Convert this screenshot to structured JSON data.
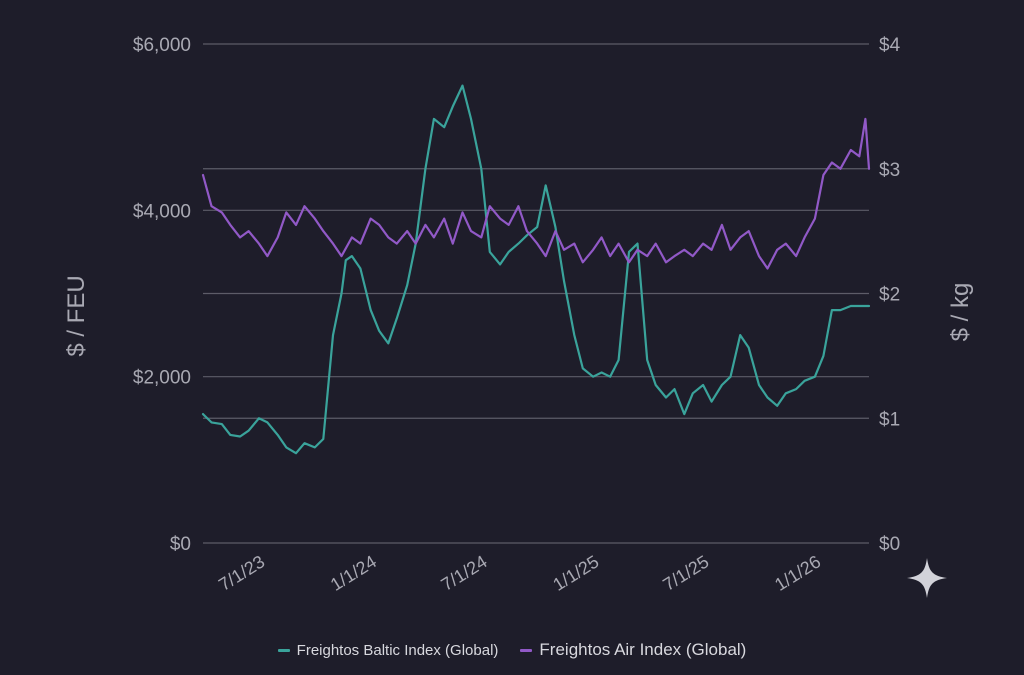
{
  "chart_data": {
    "type": "line",
    "left_axis_label": "$ / FEU",
    "right_axis_label": "$ / kg",
    "left_ticks": [
      "$0",
      "$2,000",
      "$4,000",
      "$6,000"
    ],
    "right_ticks": [
      "$0",
      "$1",
      "$2",
      "$3",
      "$4"
    ],
    "left_ylim": [
      0,
      6000
    ],
    "right_ylim": [
      0,
      4
    ],
    "x_tick_labels": [
      "7/1/23",
      "1/1/24",
      "7/1/24",
      "1/1/25",
      "7/1/25",
      "1/1/26"
    ],
    "grid": true,
    "legend_position": "bottom",
    "series": [
      {
        "name": "Freightos Baltic Index (Global)",
        "axis": "left",
        "color": "#3aa39b",
        "x": [
          "2023-05-01",
          "2023-05-15",
          "2023-06-01",
          "2023-06-15",
          "2023-07-01",
          "2023-07-15",
          "2023-08-01",
          "2023-08-15",
          "2023-09-01",
          "2023-09-15",
          "2023-10-01",
          "2023-10-15",
          "2023-11-01",
          "2023-11-15",
          "2023-12-01",
          "2023-12-15",
          "2023-12-22",
          "2024-01-01",
          "2024-01-15",
          "2024-02-01",
          "2024-02-15",
          "2024-03-01",
          "2024-03-15",
          "2024-04-01",
          "2024-04-15",
          "2024-05-01",
          "2024-05-15",
          "2024-06-01",
          "2024-06-15",
          "2024-07-01",
          "2024-07-15",
          "2024-08-01",
          "2024-08-15",
          "2024-09-01",
          "2024-09-15",
          "2024-10-01",
          "2024-10-15",
          "2024-11-01",
          "2024-11-15",
          "2024-12-01",
          "2024-12-15",
          "2025-01-01",
          "2025-01-15",
          "2025-02-01",
          "2025-02-15",
          "2025-03-01",
          "2025-03-15",
          "2025-04-01",
          "2025-04-15",
          "2025-05-01",
          "2025-05-15",
          "2025-06-01",
          "2025-06-15",
          "2025-07-01",
          "2025-07-15",
          "2025-08-01",
          "2025-08-15",
          "2025-09-01",
          "2025-09-15",
          "2025-10-01",
          "2025-10-15",
          "2025-11-01",
          "2025-11-15",
          "2025-12-01",
          "2025-12-15",
          "2026-01-01",
          "2026-01-15",
          "2026-02-01",
          "2026-02-15",
          "2026-03-01",
          "2026-03-15",
          "2026-04-01",
          "2026-04-15",
          "2026-05-01"
        ],
        "values": [
          1550,
          1450,
          1430,
          1300,
          1280,
          1350,
          1500,
          1450,
          1300,
          1150,
          1080,
          1200,
          1150,
          1250,
          2500,
          3000,
          3400,
          3450,
          3300,
          2800,
          2550,
          2400,
          2700,
          3100,
          3600,
          4500,
          5100,
          5000,
          5250,
          5500,
          5100,
          4500,
          3500,
          3350,
          3500,
          3600,
          3700,
          3800,
          4300,
          3800,
          3150,
          2500,
          2100,
          2000,
          2050,
          2000,
          2200,
          3500,
          3600,
          2200,
          1900,
          1750,
          1850,
          1550,
          1800,
          1900,
          1700,
          1900,
          2000,
          2500,
          2350,
          1900,
          1750,
          1650,
          1800,
          1850,
          1950,
          2000,
          2250,
          2800,
          2800,
          2850,
          2850,
          2850
        ]
      },
      {
        "name": "Freightos Air Index (Global)",
        "axis": "right",
        "color": "#9159c7",
        "x": [
          "2023-05-01",
          "2023-05-15",
          "2023-06-01",
          "2023-06-15",
          "2023-07-01",
          "2023-07-15",
          "2023-08-01",
          "2023-08-15",
          "2023-09-01",
          "2023-09-15",
          "2023-10-01",
          "2023-10-15",
          "2023-11-01",
          "2023-11-15",
          "2023-12-01",
          "2023-12-15",
          "2024-01-01",
          "2024-01-15",
          "2024-02-01",
          "2024-02-15",
          "2024-03-01",
          "2024-03-15",
          "2024-04-01",
          "2024-04-15",
          "2024-05-01",
          "2024-05-15",
          "2024-06-01",
          "2024-06-15",
          "2024-07-01",
          "2024-07-15",
          "2024-08-01",
          "2024-08-15",
          "2024-09-01",
          "2024-09-15",
          "2024-10-01",
          "2024-10-15",
          "2024-11-01",
          "2024-11-15",
          "2024-12-01",
          "2024-12-15",
          "2025-01-01",
          "2025-01-15",
          "2025-02-01",
          "2025-02-15",
          "2025-03-01",
          "2025-03-15",
          "2025-04-01",
          "2025-04-15",
          "2025-05-01",
          "2025-05-15",
          "2025-06-01",
          "2025-06-15",
          "2025-07-01",
          "2025-07-15",
          "2025-08-01",
          "2025-08-15",
          "2025-09-01",
          "2025-09-15",
          "2025-10-01",
          "2025-10-15",
          "2025-11-01",
          "2025-11-15",
          "2025-12-01",
          "2025-12-15",
          "2026-01-01",
          "2026-01-15",
          "2026-02-01",
          "2026-02-15",
          "2026-03-01",
          "2026-03-15",
          "2026-04-01",
          "2026-04-15",
          "2026-04-25",
          "2026-05-01"
        ],
        "values": [
          2.95,
          2.7,
          2.65,
          2.55,
          2.45,
          2.5,
          2.4,
          2.3,
          2.45,
          2.65,
          2.55,
          2.7,
          2.6,
          2.5,
          2.4,
          2.3,
          2.45,
          2.4,
          2.6,
          2.55,
          2.45,
          2.4,
          2.5,
          2.4,
          2.55,
          2.45,
          2.6,
          2.4,
          2.65,
          2.5,
          2.45,
          2.7,
          2.6,
          2.55,
          2.7,
          2.5,
          2.4,
          2.3,
          2.5,
          2.35,
          2.4,
          2.25,
          2.35,
          2.45,
          2.3,
          2.4,
          2.25,
          2.35,
          2.3,
          2.4,
          2.25,
          2.3,
          2.35,
          2.3,
          2.4,
          2.35,
          2.55,
          2.35,
          2.45,
          2.5,
          2.3,
          2.2,
          2.35,
          2.4,
          2.3,
          2.45,
          2.6,
          2.95,
          3.05,
          3.0,
          3.15,
          3.1,
          3.4,
          3.0
        ]
      }
    ]
  },
  "icons": {
    "corner_icon": "sparkle-icon"
  }
}
